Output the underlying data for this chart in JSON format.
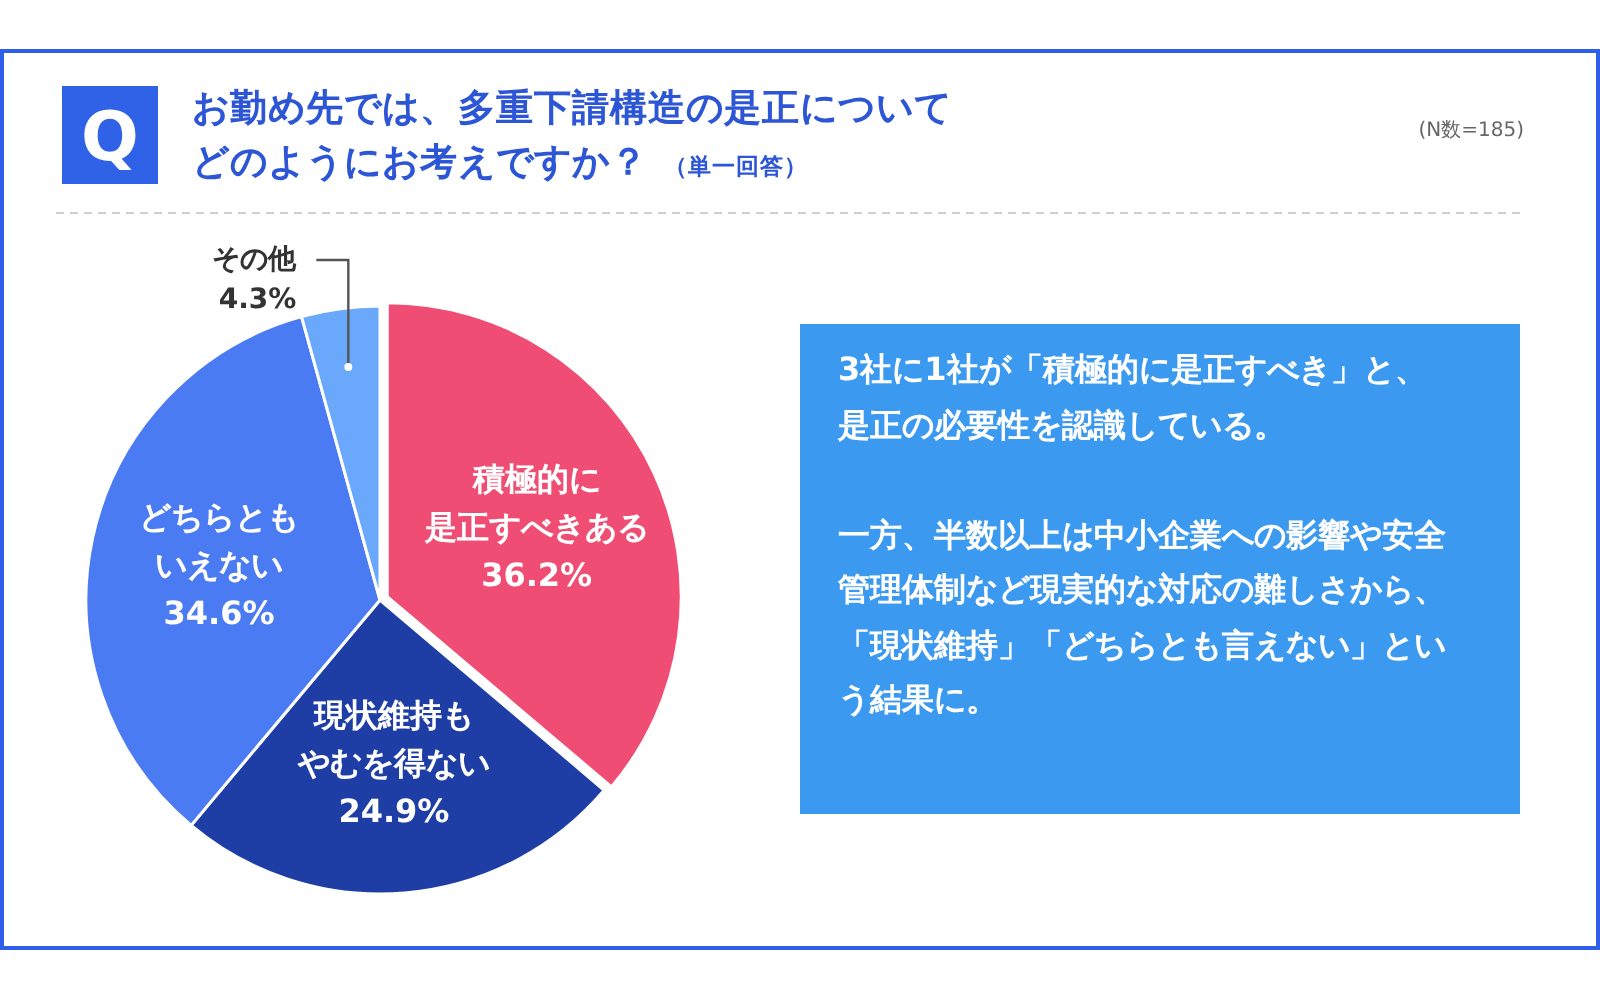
{
  "chart_data": {
    "type": "pie",
    "title": "お勤め先では、多重下請構造の是正についてどのようにお考えですか？",
    "subtitle": "（単一回答）",
    "categories": [
      "積極的に是正すべきある",
      "現状維持もやむを得ない",
      "どちらともいえない",
      "その他"
    ],
    "values": [
      36.2,
      24.9,
      34.6,
      4.3
    ],
    "value_labels": [
      "36.2%",
      "24.9%",
      "34.6%",
      "4.3%"
    ],
    "colors": [
      "#ef4d73",
      "#1e3da5",
      "#4b7bf2",
      "#69a8fb"
    ],
    "annotations": [
      "Q",
      "(N数=185)",
      "3社に1社が「積極的に是正すべき」と、是正の必要性を認識している。",
      "一方、半数以上は中小企業への影響や安全管理体制など現実的な対応の難しさから、「現状維持」「どちらとも言えない」という結果に。"
    ]
  }
}
